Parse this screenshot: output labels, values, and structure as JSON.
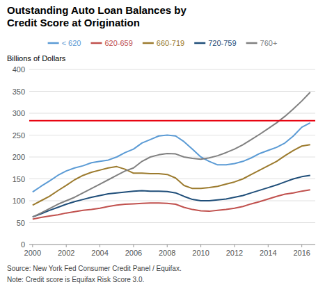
{
  "chart_data": {
    "type": "line",
    "title": "Outstanding Auto Loan Balances by\nCredit Score at Origination",
    "y_label": "Billions of Dollars",
    "annotations": [
      "Source: New York Fed Consumer Credit Panel / Equifax.",
      "Note: Credit score is Equifax Risk Score 3.0."
    ],
    "hline": {
      "value": 283,
      "color": "#e8000d"
    },
    "x": [
      2000,
      2000.5,
      2001,
      2001.5,
      2002,
      2002.5,
      2003,
      2003.5,
      2004,
      2004.5,
      2005,
      2005.5,
      2006,
      2006.5,
      2007,
      2007.5,
      2008,
      2008.5,
      2009,
      2009.5,
      2010,
      2010.5,
      2011,
      2011.5,
      2012,
      2012.5,
      2013,
      2013.5,
      2014,
      2014.5,
      2015,
      2015.5,
      2016,
      2016.5
    ],
    "series": [
      {
        "name": "< 620",
        "color": "#5b9bd5",
        "values": [
          120,
          133,
          145,
          158,
          168,
          175,
          180,
          187,
          190,
          193,
          200,
          210,
          218,
          232,
          240,
          248,
          250,
          248,
          235,
          218,
          200,
          190,
          182,
          182,
          185,
          190,
          198,
          208,
          215,
          222,
          232,
          248,
          268,
          278
        ]
      },
      {
        "name": "620-659",
        "color": "#c0504d",
        "values": [
          58,
          62,
          65,
          68,
          72,
          75,
          78,
          80,
          83,
          87,
          90,
          92,
          93,
          94,
          95,
          95,
          94,
          92,
          85,
          80,
          77,
          76,
          78,
          80,
          83,
          87,
          93,
          98,
          104,
          110,
          115,
          118,
          122,
          125
        ]
      },
      {
        "name": "660-719",
        "color": "#9c7b2e",
        "values": [
          90,
          100,
          110,
          123,
          135,
          148,
          158,
          165,
          170,
          175,
          178,
          172,
          163,
          163,
          162,
          162,
          160,
          152,
          135,
          128,
          128,
          130,
          133,
          138,
          143,
          150,
          160,
          170,
          180,
          190,
          203,
          215,
          225,
          228
        ]
      },
      {
        "name": "720-759",
        "color": "#1f4e79",
        "values": [
          63,
          70,
          78,
          85,
          92,
          98,
          103,
          108,
          112,
          116,
          118,
          120,
          122,
          123,
          122,
          122,
          121,
          118,
          110,
          103,
          100,
          100,
          102,
          104,
          108,
          112,
          118,
          124,
          130,
          136,
          143,
          150,
          155,
          158
        ]
      },
      {
        "name": "760+",
        "color": "#808080",
        "values": [
          63,
          72,
          82,
          92,
          100,
          108,
          118,
          128,
          138,
          148,
          158,
          168,
          175,
          190,
          200,
          205,
          208,
          207,
          200,
          197,
          195,
          198,
          203,
          210,
          218,
          228,
          240,
          252,
          265,
          278,
          293,
          310,
          328,
          348
        ]
      }
    ],
    "xlim": [
      1999.8,
      2016.8
    ],
    "xticks": [
      2000,
      2002,
      2004,
      2006,
      2008,
      2010,
      2012,
      2014,
      2016
    ],
    "ylim": [
      0,
      400
    ],
    "yticks": [
      0,
      50,
      100,
      150,
      200,
      250,
      300,
      350,
      400
    ],
    "grid": true,
    "legend": "top"
  }
}
